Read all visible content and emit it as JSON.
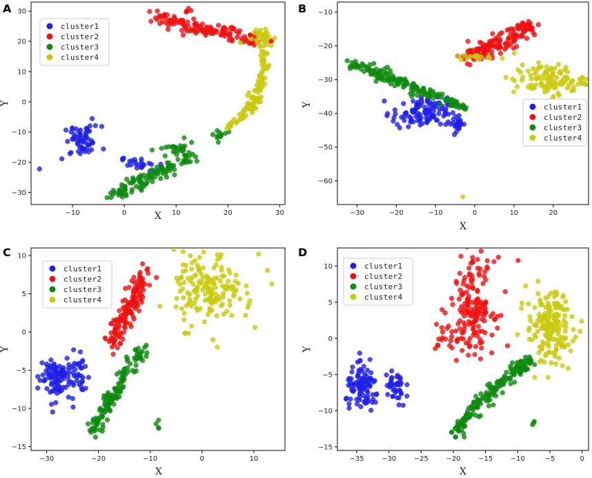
{
  "colors": {
    "cluster1": "#1f1fe6",
    "cluster2": "#ee1111",
    "cluster3": "#0e8a0e",
    "cluster4": "#c9c90f"
  },
  "chart_data": [
    {
      "type": "scatter",
      "panel_label": "A",
      "xlabel": "X",
      "ylabel": "Y",
      "xlim": [
        -18,
        31
      ],
      "ylim": [
        -34,
        33
      ],
      "xticks": [
        -10,
        0,
        10,
        20,
        30
      ],
      "yticks": [
        -30,
        -20,
        -10,
        0,
        10,
        20,
        30
      ],
      "legend": [
        "cluster1",
        "cluster2",
        "cluster3",
        "cluster4"
      ],
      "legend_position": "upper-left",
      "series": [
        {
          "name": "cluster1",
          "blobs": [
            {
              "cx": -8,
              "cy": -13,
              "sx": 1.8,
              "sy": 2.5,
              "n": 60
            },
            {
              "cx": 3,
              "cy": -20.5,
              "sx": 1.8,
              "sy": 1.3,
              "n": 25
            },
            {
              "cx": -16.5,
              "cy": -22.5,
              "sx": 0.3,
              "sy": 0.3,
              "n": 1
            },
            {
              "cx": -12,
              "cy": -19.5,
              "sx": 0.3,
              "sy": 0.3,
              "n": 1
            }
          ]
        },
        {
          "name": "cluster2",
          "path": [
            [
              6,
              28
            ],
            [
              12,
              25
            ],
            [
              22,
              22
            ],
            [
              27,
              20
            ]
          ],
          "spread": 2.2,
          "n": 140,
          "blobs": [
            {
              "cx": 12,
              "cy": 30,
              "sx": 0.8,
              "sy": 0.6,
              "n": 5
            }
          ]
        },
        {
          "name": "cluster3",
          "path": [
            [
              -2,
              -31
            ],
            [
              4,
              -25
            ],
            [
              10,
              -21
            ],
            [
              13,
              -18
            ]
          ],
          "spread": 2.0,
          "n": 110,
          "blobs": [
            {
              "cx": 10,
              "cy": -16,
              "sx": 1.8,
              "sy": 1.4,
              "n": 25
            },
            {
              "cx": 18.5,
              "cy": -11,
              "sx": 1.0,
              "sy": 1.1,
              "n": 12
            }
          ]
        },
        {
          "name": "cluster4",
          "path": [
            [
              20,
              -9
            ],
            [
              24,
              -3
            ],
            [
              26,
              3
            ],
            [
              27,
              12
            ],
            [
              27,
              22
            ]
          ],
          "spread": 1.1,
          "n": 120,
          "blobs": [
            {
              "cx": 26,
              "cy": 22,
              "sx": 1.4,
              "sy": 1.6,
              "n": 20
            }
          ]
        }
      ]
    },
    {
      "type": "scatter",
      "panel_label": "B",
      "xlabel": "X",
      "ylabel": "Y",
      "xlim": [
        -35,
        29
      ],
      "ylim": [
        -67,
        -7
      ],
      "xticks": [
        -30,
        -20,
        -10,
        0,
        10,
        20
      ],
      "yticks": [
        -60,
        -50,
        -40,
        -30,
        -20,
        -10
      ],
      "legend": [
        "cluster1",
        "cluster2",
        "cluster3",
        "cluster4"
      ],
      "legend_position": "lower-right",
      "series": [
        {
          "name": "cluster1",
          "blobs": [
            {
              "cx": -14,
              "cy": -40,
              "sx": 3.5,
              "sy": 2.3,
              "n": 110
            },
            {
              "cx": -4.5,
              "cy": -43,
              "sx": 1.2,
              "sy": 1.5,
              "n": 25
            }
          ]
        },
        {
          "name": "cluster2",
          "path": [
            [
              -2,
              -23
            ],
            [
              5,
              -20
            ],
            [
              10,
              -17
            ],
            [
              15,
              -13
            ]
          ],
          "spread": 2.4,
          "n": 160
        },
        {
          "name": "cluster3",
          "path": [
            [
              -32,
              -25
            ],
            [
              -25,
              -28
            ],
            [
              -16,
              -32
            ],
            [
              -10,
              -35
            ],
            [
              -3,
              -37.5
            ]
          ],
          "spread": 1.7,
          "n": 160
        },
        {
          "name": "cluster4",
          "blobs": [
            {
              "cx": 19,
              "cy": -30,
              "sx": 4.5,
              "sy": 2.2,
              "n": 110
            },
            {
              "cx": 0,
              "cy": -23.5,
              "sx": 2.5,
              "sy": 0.4,
              "n": 14
            },
            {
              "cx": -3,
              "cy": -64.5,
              "sx": 0.2,
              "sy": 0.2,
              "n": 1
            }
          ]
        }
      ]
    },
    {
      "type": "scatter",
      "panel_label": "C",
      "xlabel": "X",
      "ylabel": "Y",
      "xlim": [
        -33,
        16
      ],
      "ylim": [
        -15.5,
        11
      ],
      "xticks": [
        -30,
        -20,
        -10,
        0,
        10
      ],
      "yticks": [
        -15,
        -10,
        -5,
        0,
        5,
        10
      ],
      "legend": [
        "cluster1",
        "cluster2",
        "cluster3",
        "cluster4"
      ],
      "legend_position": "upper-left",
      "series": [
        {
          "name": "cluster1",
          "blobs": [
            {
              "cx": -28.5,
              "cy": -6,
              "sx": 1.6,
              "sy": 1.5,
              "n": 90
            },
            {
              "cx": -24,
              "cy": -5.5,
              "sx": 1.2,
              "sy": 1.5,
              "n": 35
            }
          ]
        },
        {
          "name": "cluster2",
          "path": [
            [
              -18,
              -2
            ],
            [
              -14,
              3
            ],
            [
              -11,
              8
            ]
          ],
          "spread": 1.5,
          "n": 150
        },
        {
          "name": "cluster3",
          "path": [
            [
              -21,
              -13
            ],
            [
              -18,
              -9
            ],
            [
              -14,
              -5
            ],
            [
              -11,
              -2
            ]
          ],
          "spread": 1.1,
          "n": 130,
          "blobs": [
            {
              "cx": -8.5,
              "cy": -12,
              "sx": 0.3,
              "sy": 0.7,
              "n": 4
            }
          ]
        },
        {
          "name": "cluster4",
          "blobs": [
            {
              "cx": 1,
              "cy": 5.5,
              "sx": 3.2,
              "sy": 2.4,
              "n": 160
            },
            {
              "cx": 12,
              "cy": 7,
              "sx": 2.5,
              "sy": 2.5,
              "n": 8
            }
          ]
        }
      ]
    },
    {
      "type": "scatter",
      "panel_label": "D",
      "xlabel": "X",
      "ylabel": "Y",
      "xlim": [
        -38,
        1
      ],
      "ylim": [
        -15.5,
        12.5
      ],
      "xticks": [
        -35,
        -30,
        -25,
        -20,
        -15,
        -10,
        -5,
        0
      ],
      "yticks": [
        -15,
        -10,
        -5,
        0,
        5,
        10
      ],
      "legend": [
        "cluster1",
        "cluster2",
        "cluster3",
        "cluster4"
      ],
      "legend_position": "upper-left",
      "series": [
        {
          "name": "cluster1",
          "blobs": [
            {
              "cx": -34,
              "cy": -7,
              "sx": 1.3,
              "sy": 1.5,
              "n": 100
            },
            {
              "cx": -29,
              "cy": -7,
              "sx": 0.8,
              "sy": 1.5,
              "n": 40
            }
          ]
        },
        {
          "name": "cluster2",
          "blobs": [
            {
              "cx": -17,
              "cy": 4.5,
              "sx": 1.7,
              "sy": 3.2,
              "n": 170
            },
            {
              "cx": -21,
              "cy": 0,
              "sx": 1.0,
              "sy": 1.0,
              "n": 15
            },
            {
              "cx": -10,
              "cy": 11,
              "sx": 0.2,
              "sy": 0.2,
              "n": 1
            }
          ]
        },
        {
          "name": "cluster3",
          "path": [
            [
              -20,
              -13
            ],
            [
              -16,
              -9
            ],
            [
              -12,
              -5.5
            ],
            [
              -8,
              -3
            ]
          ],
          "spread": 1.0,
          "n": 170,
          "blobs": [
            {
              "cx": -7.5,
              "cy": -11.8,
              "sx": 0.2,
              "sy": 0.3,
              "n": 3
            }
          ]
        },
        {
          "name": "cluster4",
          "blobs": [
            {
              "cx": -5,
              "cy": 1.5,
              "sx": 1.8,
              "sy": 2.5,
              "n": 180
            }
          ]
        }
      ]
    }
  ]
}
